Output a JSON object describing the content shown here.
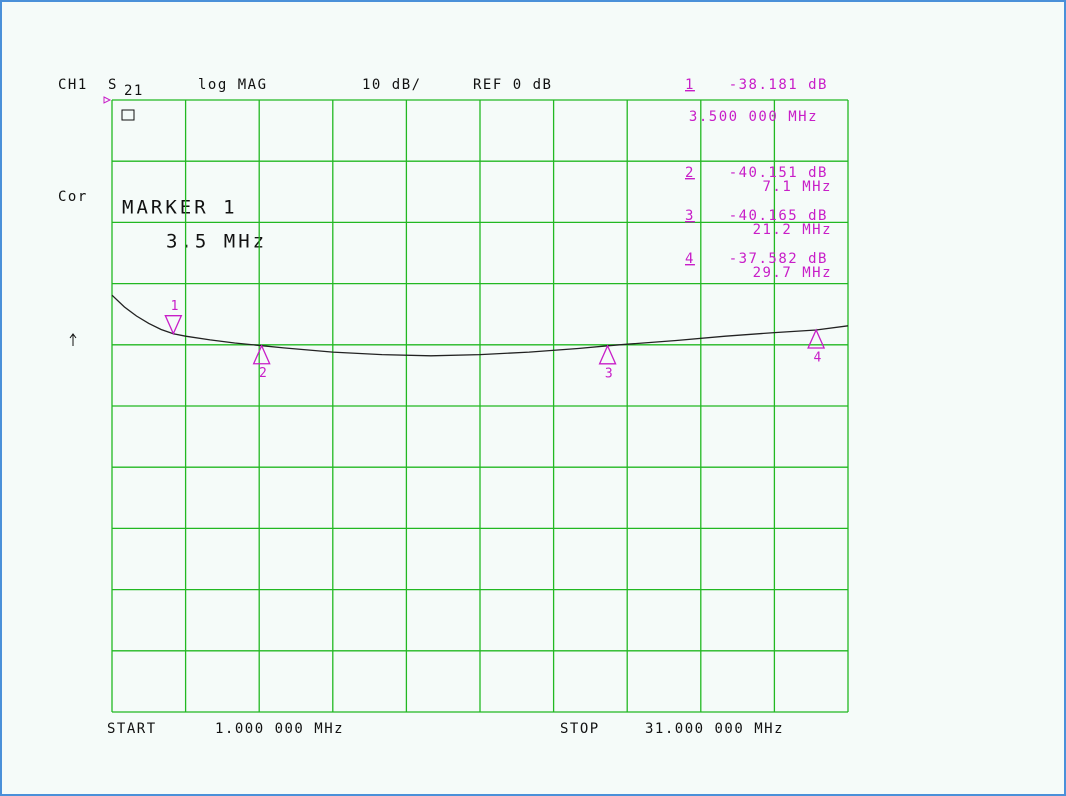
{
  "chart_data": {
    "type": "line",
    "channel": "CH1",
    "parameter": "S",
    "parameter_sub": "21",
    "format": "log MAG",
    "scale": "10 dB/",
    "reference": "REF 0 dB",
    "correction": "Cor",
    "marker_title": "MARKER 1",
    "marker_freq": "3.5 MHz",
    "start_label": "START",
    "start_value": "1.000 000 MHz",
    "stop_label": "STOP",
    "stop_value": "31.000 000 MHz",
    "xlim": [
      1,
      31
    ],
    "xticks": [
      1,
      4,
      7,
      10,
      13,
      16,
      19,
      22,
      25,
      28,
      31
    ],
    "ylim": [
      -100,
      0
    ],
    "yticks": [
      -100,
      -90,
      -80,
      -70,
      -60,
      -50,
      -40,
      -30,
      -20,
      -10,
      0
    ],
    "grid": true,
    "series": [
      {
        "name": "S21",
        "color": "#222222",
        "x": [
          1,
          1.5,
          2,
          2.5,
          3,
          3.5,
          4,
          5,
          6,
          7.1,
          8,
          10,
          12,
          14,
          16,
          18,
          20,
          21.2,
          22,
          24,
          26,
          28,
          29.7,
          31
        ],
        "values": [
          -31.9,
          -33.8,
          -35.3,
          -36.5,
          -37.5,
          -38.2,
          -38.6,
          -39.2,
          -39.7,
          -40.15,
          -40.5,
          -41.2,
          -41.6,
          -41.8,
          -41.6,
          -41.2,
          -40.6,
          -40.17,
          -39.9,
          -39.3,
          -38.6,
          -38.0,
          -37.58,
          -36.9
        ]
      }
    ],
    "markers": [
      {
        "label": "1",
        "x": 3.5,
        "x_label": "3.500 000 MHz",
        "value": -38.181,
        "value_label": "-38.181 dB"
      },
      {
        "label": "2",
        "x": 7.1,
        "x_label": "7.1 MHz",
        "value": -40.151,
        "value_label": "-40.151 dB"
      },
      {
        "label": "3",
        "x": 21.2,
        "x_label": "21.2 MHz",
        "value": -40.165,
        "value_label": "-40.165 dB"
      },
      {
        "label": "4",
        "x": 29.7,
        "x_label": "29.7 MHz",
        "value": -37.582,
        "value_label": "-37.582 dB"
      }
    ],
    "marker_color": "#c81ec8"
  }
}
